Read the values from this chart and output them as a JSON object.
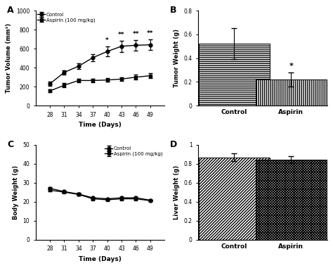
{
  "days": [
    28,
    31,
    34,
    37,
    40,
    43,
    46,
    49
  ],
  "tumor_volume_control": [
    230,
    350,
    415,
    505,
    570,
    625,
    635,
    640
  ],
  "tumor_volume_control_err": [
    20,
    25,
    30,
    40,
    50,
    60,
    55,
    55
  ],
  "tumor_volume_aspirin": [
    155,
    215,
    265,
    265,
    270,
    280,
    300,
    315
  ],
  "tumor_volume_aspirin_err": [
    15,
    20,
    20,
    20,
    20,
    20,
    25,
    25
  ],
  "tumor_volume_sig": [
    null,
    null,
    null,
    null,
    "*",
    "**",
    "**",
    "**"
  ],
  "body_weight_control": [
    27,
    25.3,
    24,
    22,
    21.5,
    22,
    22,
    20.8
  ],
  "body_weight_control_err": [
    0.5,
    0.5,
    0.5,
    0.4,
    0.4,
    0.4,
    0.4,
    0.3
  ],
  "body_weight_aspirin": [
    26,
    25,
    23.8,
    21.5,
    21,
    21.5,
    21.5,
    20.5
  ],
  "body_weight_aspirin_err": [
    0.5,
    0.5,
    0.5,
    0.4,
    0.4,
    0.4,
    0.4,
    0.3
  ],
  "tumor_weight_control": 0.52,
  "tumor_weight_control_err": 0.13,
  "tumor_weight_aspirin": 0.22,
  "tumor_weight_aspirin_err": 0.06,
  "liver_weight_control": 0.865,
  "liver_weight_control_err": 0.04,
  "liver_weight_aspirin": 0.84,
  "liver_weight_aspirin_err": 0.035,
  "xlabel_time": "Time (Days)",
  "ylabel_tumor_vol": "Tumor Volume (mm³)",
  "ylabel_body_wt": "Body Weight (g)",
  "ylabel_tumor_wt": "Tumor Weight (g)",
  "ylabel_liver_wt": "Liver Weight (g)",
  "label_control": "Control",
  "label_aspirin": "Aspirin (100 mg/kg)",
  "label_aspirin_short": "Aspirin",
  "panel_A": "A",
  "panel_B": "B",
  "panel_C": "C",
  "panel_D": "D"
}
